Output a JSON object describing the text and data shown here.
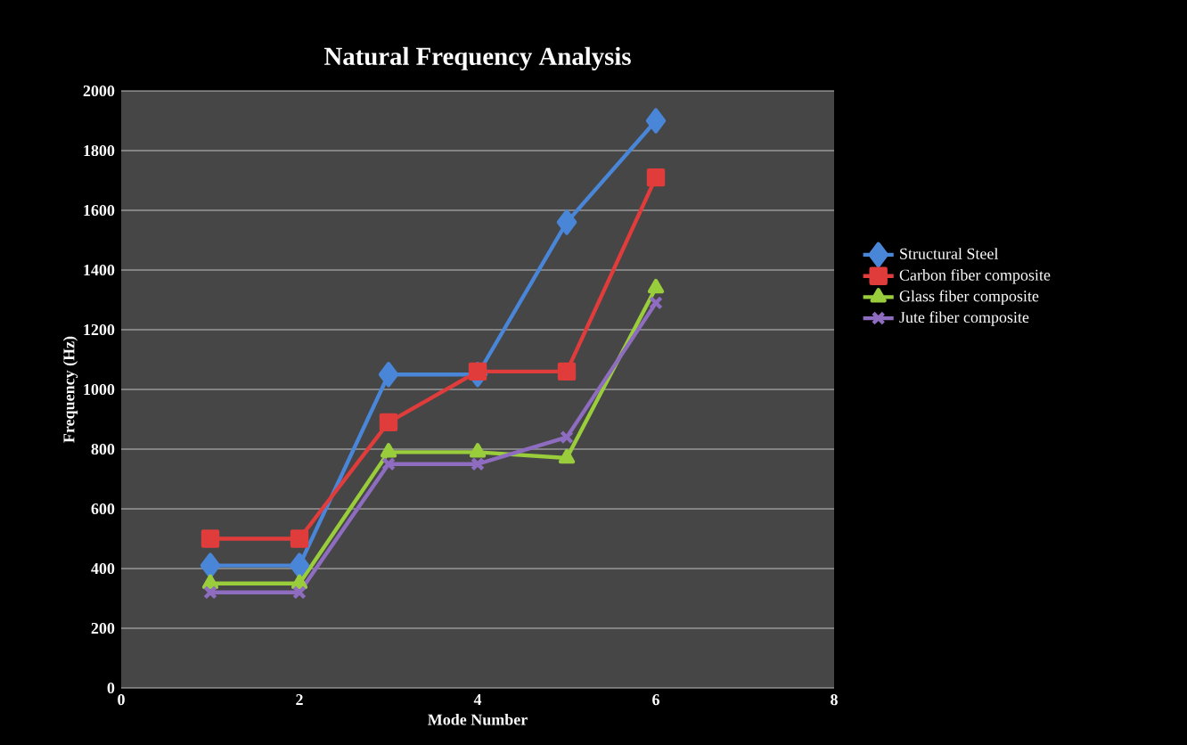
{
  "chart_data": {
    "type": "line",
    "title": "Natural Frequency Analysis",
    "xlabel": "Mode Number",
    "ylabel": "Frequency (Hz)",
    "x": [
      1,
      2,
      3,
      4,
      5,
      6
    ],
    "series": [
      {
        "name": "Structural Steel",
        "color": "#4a86d8",
        "marker": "diamond",
        "values": [
          410,
          410,
          1050,
          1050,
          1560,
          1900
        ]
      },
      {
        "name": "Carbon fiber composite",
        "color": "#e03c3c",
        "marker": "square",
        "values": [
          500,
          500,
          890,
          1060,
          1060,
          1710
        ]
      },
      {
        "name": "Glass fiber composite",
        "color": "#9acd3c",
        "marker": "triangle",
        "values": [
          350,
          350,
          790,
          790,
          770,
          1340
        ]
      },
      {
        "name": "Jute fiber composite",
        "color": "#8e6cc0",
        "marker": "cross",
        "values": [
          320,
          320,
          750,
          750,
          840,
          1290
        ]
      }
    ],
    "xlim": [
      0,
      8
    ],
    "xticks": [
      0,
      2,
      4,
      6,
      8
    ],
    "ylim": [
      0,
      2000
    ],
    "yticks": [
      0,
      200,
      400,
      600,
      800,
      1000,
      1200,
      1400,
      1600,
      1800,
      2000
    ],
    "grid": "y",
    "legend": "right"
  }
}
